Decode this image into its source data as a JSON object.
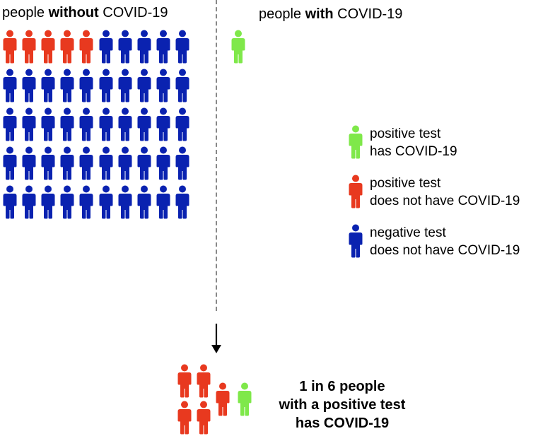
{
  "titles": {
    "without_prefix": "people ",
    "without_bold": "without",
    "without_suffix": " COVID-19",
    "with_prefix": "people ",
    "with_bold": "with",
    "with_suffix": " COVID-19"
  },
  "colors": {
    "green": "#7fe84a",
    "red": "#e8391f",
    "blue": "#0a22b0"
  },
  "people_without": {
    "columns": 10,
    "total": 50,
    "false_positive_count": 5
  },
  "people_with": {
    "total": 1,
    "true_positive_count": 1
  },
  "legend": [
    {
      "color": "green",
      "line1": "positive test",
      "line2": "has COVID-19"
    },
    {
      "color": "red",
      "line1": "positive test",
      "line2": "does not have COVID-19"
    },
    {
      "color": "blue",
      "line1": "negative test",
      "line2": "does not have COVID-19"
    }
  ],
  "result": {
    "red_count": 5,
    "green_count": 1,
    "line1": "1 in 6 people",
    "line2": "with a positive test",
    "line3_prefix": "has ",
    "line3_bold": "COVID-19"
  }
}
